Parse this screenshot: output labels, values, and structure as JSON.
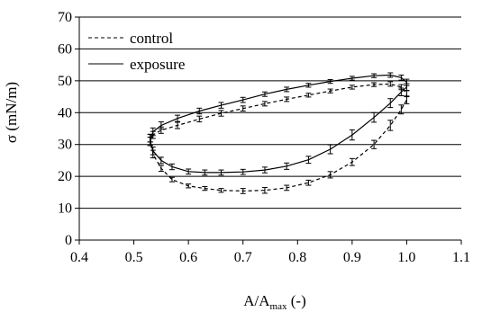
{
  "chart_data": {
    "type": "line",
    "title": "",
    "xlabel": {
      "base": "A/A",
      "sub": "max",
      "suffix": " (-)"
    },
    "ylabel": "σ (mN/m)",
    "xlim": [
      0.4,
      1.1
    ],
    "ylim": [
      0,
      70
    ],
    "x_ticks": [
      "0.4",
      "0.5",
      "0.6",
      "0.7",
      "0.8",
      "0.9",
      "1.0",
      "1.1"
    ],
    "y_ticks": [
      "0",
      "10",
      "20",
      "30",
      "40",
      "50",
      "60",
      "70"
    ],
    "grid": "horizontal",
    "legend_position": "top-left",
    "series": [
      {
        "name": "control",
        "style": "dashed",
        "color": "#000000",
        "x": [
          0.53,
          0.535,
          0.55,
          0.57,
          0.6,
          0.63,
          0.66,
          0.7,
          0.74,
          0.78,
          0.82,
          0.86,
          0.9,
          0.94,
          0.97,
          0.99,
          1.0,
          1.0,
          0.99,
          0.97,
          0.94,
          0.9,
          0.86,
          0.82,
          0.78,
          0.74,
          0.7,
          0.66,
          0.62,
          0.58,
          0.55,
          0.535,
          0.53
        ],
        "y": [
          32,
          27,
          22.5,
          19,
          17,
          16.2,
          15.6,
          15.4,
          15.6,
          16.4,
          18,
          20.5,
          24.5,
          30,
          36,
          41,
          44,
          46,
          48,
          49,
          48.8,
          48,
          46.8,
          45.5,
          44.2,
          42.8,
          41.3,
          39.8,
          38,
          36,
          34.5,
          33,
          32
        ],
        "err": [
          1.2,
          1.2,
          0.9,
          0.7,
          0.6,
          0.6,
          0.6,
          0.8,
          0.9,
          0.8,
          0.8,
          1.0,
          1.1,
          1.3,
          1.6,
          1.4,
          1.2,
          1.0,
          0.8,
          0.7,
          0.6,
          0.6,
          0.6,
          0.6,
          0.7,
          0.7,
          0.8,
          0.9,
          0.9,
          1.0,
          1.0,
          1.1,
          1.2
        ]
      },
      {
        "name": "exposure",
        "style": "solid",
        "color": "#000000",
        "x": [
          0.53,
          0.535,
          0.55,
          0.57,
          0.6,
          0.63,
          0.66,
          0.7,
          0.74,
          0.78,
          0.82,
          0.86,
          0.9,
          0.94,
          0.97,
          0.99,
          1.0,
          1.0,
          0.99,
          0.97,
          0.94,
          0.9,
          0.86,
          0.82,
          0.78,
          0.74,
          0.7,
          0.66,
          0.62,
          0.58,
          0.55,
          0.535,
          0.53
        ],
        "y": [
          31,
          28,
          25,
          23,
          21.5,
          21.2,
          21.2,
          21.4,
          22,
          23.2,
          25.2,
          28.5,
          33,
          38.5,
          43,
          46.5,
          48,
          49.5,
          51,
          51.8,
          51.6,
          50.8,
          49.8,
          48.6,
          47.3,
          45.8,
          44,
          42.3,
          40.5,
          38.2,
          36,
          34,
          31
        ],
        "err": [
          1.3,
          1.2,
          1.0,
          0.9,
          0.8,
          0.8,
          0.8,
          0.8,
          0.9,
          1.0,
          1.1,
          1.4,
          1.6,
          1.5,
          1.4,
          1.2,
          1.1,
          1.0,
          0.8,
          0.7,
          0.6,
          0.6,
          0.6,
          0.6,
          0.7,
          0.7,
          0.8,
          0.9,
          0.9,
          1.0,
          1.1,
          1.2,
          1.3
        ]
      }
    ]
  }
}
